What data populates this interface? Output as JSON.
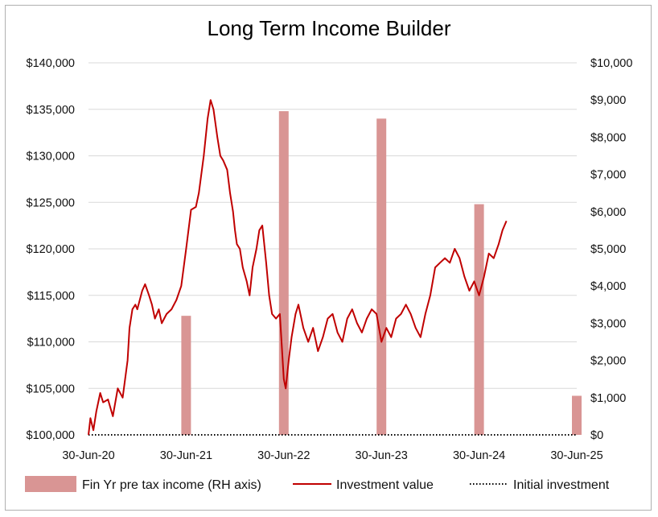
{
  "chart_data": {
    "type": "bar+line",
    "title": "Long Term Income Builder",
    "x_tick_labels": [
      "30-Jun-20",
      "30-Jun-21",
      "30-Jun-22",
      "30-Jun-23",
      "30-Jun-24",
      "30-Jun-25"
    ],
    "left_axis": {
      "min": 100000,
      "max": 140000,
      "step": 5000,
      "tick_labels": [
        "$100,000",
        "$105,000",
        "$110,000",
        "$115,000",
        "$120,000",
        "$125,000",
        "$130,000",
        "$135,000",
        "$140,000"
      ]
    },
    "right_axis": {
      "min": 0,
      "max": 10000,
      "step": 1000,
      "tick_labels": [
        "$0",
        "$1,000",
        "$2,000",
        "$3,000",
        "$4,000",
        "$5,000",
        "$6,000",
        "$7,000",
        "$8,000",
        "$9,000",
        "$10,000"
      ]
    },
    "grid": "horizontal",
    "legend_position": "bottom",
    "bar_series": {
      "name": "Fin Yr pre tax income (RH axis)",
      "color": "#d99594",
      "points": [
        {
          "x": 2021.0,
          "value": 3200
        },
        {
          "x": 2022.0,
          "value": 8700
        },
        {
          "x": 2023.0,
          "value": 8500
        },
        {
          "x": 2024.0,
          "value": 6200
        },
        {
          "x": 2025.0,
          "value": 1050
        }
      ]
    },
    "line_series": {
      "name": "Investment value",
      "color": "#c00000",
      "points": [
        [
          2020.0,
          100000
        ],
        [
          2020.02,
          101800
        ],
        [
          2020.05,
          100500
        ],
        [
          2020.08,
          102500
        ],
        [
          2020.12,
          104500
        ],
        [
          2020.15,
          103500
        ],
        [
          2020.2,
          103800
        ],
        [
          2020.25,
          102000
        ],
        [
          2020.3,
          105000
        ],
        [
          2020.35,
          104000
        ],
        [
          2020.4,
          108000
        ],
        [
          2020.42,
          111500
        ],
        [
          2020.45,
          113500
        ],
        [
          2020.48,
          114000
        ],
        [
          2020.5,
          113500
        ],
        [
          2020.55,
          115500
        ],
        [
          2020.58,
          116200
        ],
        [
          2020.62,
          115000
        ],
        [
          2020.65,
          114000
        ],
        [
          2020.68,
          112500
        ],
        [
          2020.72,
          113500
        ],
        [
          2020.75,
          112000
        ],
        [
          2020.8,
          113000
        ],
        [
          2020.85,
          113500
        ],
        [
          2020.9,
          114500
        ],
        [
          2020.95,
          116000
        ],
        [
          2021.0,
          120000
        ],
        [
          2021.05,
          124200
        ],
        [
          2021.1,
          124500
        ],
        [
          2021.13,
          126000
        ],
        [
          2021.18,
          130000
        ],
        [
          2021.22,
          134000
        ],
        [
          2021.25,
          136000
        ],
        [
          2021.28,
          135000
        ],
        [
          2021.32,
          132000
        ],
        [
          2021.35,
          130000
        ],
        [
          2021.38,
          129500
        ],
        [
          2021.42,
          128500
        ],
        [
          2021.45,
          126000
        ],
        [
          2021.48,
          124000
        ],
        [
          2021.5,
          122000
        ],
        [
          2021.52,
          120500
        ],
        [
          2021.55,
          120000
        ],
        [
          2021.58,
          118000
        ],
        [
          2021.62,
          116500
        ],
        [
          2021.65,
          115000
        ],
        [
          2021.68,
          118000
        ],
        [
          2021.72,
          120000
        ],
        [
          2021.75,
          122000
        ],
        [
          2021.78,
          122500
        ],
        [
          2021.82,
          118500
        ],
        [
          2021.85,
          115000
        ],
        [
          2021.88,
          113000
        ],
        [
          2021.92,
          112500
        ],
        [
          2021.96,
          113000
        ],
        [
          2022.0,
          106000
        ],
        [
          2022.02,
          105000
        ],
        [
          2022.05,
          108000
        ],
        [
          2022.08,
          110500
        ],
        [
          2022.12,
          113000
        ],
        [
          2022.15,
          114000
        ],
        [
          2022.2,
          111500
        ],
        [
          2022.25,
          110000
        ],
        [
          2022.3,
          111500
        ],
        [
          2022.35,
          109000
        ],
        [
          2022.4,
          110500
        ],
        [
          2022.45,
          112500
        ],
        [
          2022.5,
          113000
        ],
        [
          2022.55,
          111000
        ],
        [
          2022.6,
          110000
        ],
        [
          2022.65,
          112500
        ],
        [
          2022.7,
          113500
        ],
        [
          2022.75,
          112000
        ],
        [
          2022.8,
          111000
        ],
        [
          2022.85,
          112500
        ],
        [
          2022.9,
          113500
        ],
        [
          2022.95,
          113000
        ],
        [
          2023.0,
          110000
        ],
        [
          2023.05,
          111500
        ],
        [
          2023.1,
          110500
        ],
        [
          2023.15,
          112500
        ],
        [
          2023.2,
          113000
        ],
        [
          2023.25,
          114000
        ],
        [
          2023.3,
          113000
        ],
        [
          2023.35,
          111500
        ],
        [
          2023.4,
          110500
        ],
        [
          2023.45,
          113000
        ],
        [
          2023.5,
          115000
        ],
        [
          2023.55,
          118000
        ],
        [
          2023.6,
          118500
        ],
        [
          2023.65,
          119000
        ],
        [
          2023.7,
          118500
        ],
        [
          2023.75,
          120000
        ],
        [
          2023.8,
          119000
        ],
        [
          2023.85,
          117000
        ],
        [
          2023.9,
          115500
        ],
        [
          2023.95,
          116500
        ],
        [
          2024.0,
          115000
        ],
        [
          2024.05,
          117000
        ],
        [
          2024.1,
          119500
        ],
        [
          2024.15,
          119000
        ],
        [
          2024.2,
          120500
        ],
        [
          2024.24,
          122000
        ],
        [
          2024.28,
          123000
        ]
      ]
    },
    "baseline_series": {
      "name": "Initial investment",
      "value": 100000
    }
  }
}
